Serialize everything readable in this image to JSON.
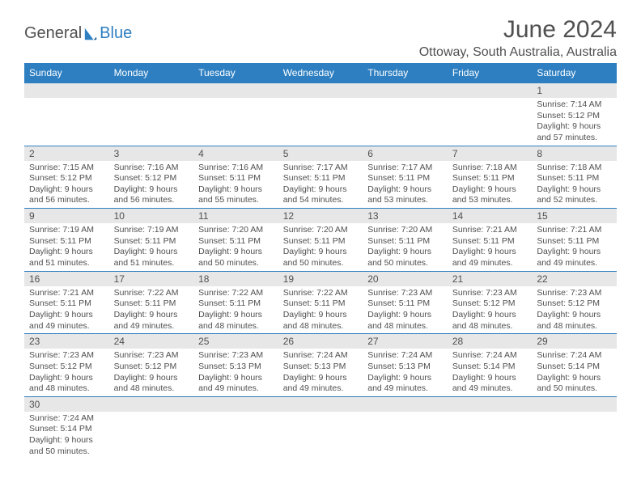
{
  "logo": {
    "text1": "General",
    "text2": "Blue"
  },
  "title": "June 2024",
  "location": "Ottoway, South Australia, Australia",
  "colors": {
    "header_bg": "#2d7fc1",
    "header_text": "#ffffff",
    "daynum_bg": "#e7e7e7",
    "text": "#505050",
    "border": "#2d7fc1"
  },
  "dayHeaders": [
    "Sunday",
    "Monday",
    "Tuesday",
    "Wednesday",
    "Thursday",
    "Friday",
    "Saturday"
  ],
  "weeks": [
    [
      null,
      null,
      null,
      null,
      null,
      null,
      {
        "n": "1",
        "sr": "7:14 AM",
        "ss": "5:12 PM",
        "dl": "9 hours and 57 minutes."
      }
    ],
    [
      {
        "n": "2",
        "sr": "7:15 AM",
        "ss": "5:12 PM",
        "dl": "9 hours and 56 minutes."
      },
      {
        "n": "3",
        "sr": "7:16 AM",
        "ss": "5:12 PM",
        "dl": "9 hours and 56 minutes."
      },
      {
        "n": "4",
        "sr": "7:16 AM",
        "ss": "5:11 PM",
        "dl": "9 hours and 55 minutes."
      },
      {
        "n": "5",
        "sr": "7:17 AM",
        "ss": "5:11 PM",
        "dl": "9 hours and 54 minutes."
      },
      {
        "n": "6",
        "sr": "7:17 AM",
        "ss": "5:11 PM",
        "dl": "9 hours and 53 minutes."
      },
      {
        "n": "7",
        "sr": "7:18 AM",
        "ss": "5:11 PM",
        "dl": "9 hours and 53 minutes."
      },
      {
        "n": "8",
        "sr": "7:18 AM",
        "ss": "5:11 PM",
        "dl": "9 hours and 52 minutes."
      }
    ],
    [
      {
        "n": "9",
        "sr": "7:19 AM",
        "ss": "5:11 PM",
        "dl": "9 hours and 51 minutes."
      },
      {
        "n": "10",
        "sr": "7:19 AM",
        "ss": "5:11 PM",
        "dl": "9 hours and 51 minutes."
      },
      {
        "n": "11",
        "sr": "7:20 AM",
        "ss": "5:11 PM",
        "dl": "9 hours and 50 minutes."
      },
      {
        "n": "12",
        "sr": "7:20 AM",
        "ss": "5:11 PM",
        "dl": "9 hours and 50 minutes."
      },
      {
        "n": "13",
        "sr": "7:20 AM",
        "ss": "5:11 PM",
        "dl": "9 hours and 50 minutes."
      },
      {
        "n": "14",
        "sr": "7:21 AM",
        "ss": "5:11 PM",
        "dl": "9 hours and 49 minutes."
      },
      {
        "n": "15",
        "sr": "7:21 AM",
        "ss": "5:11 PM",
        "dl": "9 hours and 49 minutes."
      }
    ],
    [
      {
        "n": "16",
        "sr": "7:21 AM",
        "ss": "5:11 PM",
        "dl": "9 hours and 49 minutes."
      },
      {
        "n": "17",
        "sr": "7:22 AM",
        "ss": "5:11 PM",
        "dl": "9 hours and 49 minutes."
      },
      {
        "n": "18",
        "sr": "7:22 AM",
        "ss": "5:11 PM",
        "dl": "9 hours and 48 minutes."
      },
      {
        "n": "19",
        "sr": "7:22 AM",
        "ss": "5:11 PM",
        "dl": "9 hours and 48 minutes."
      },
      {
        "n": "20",
        "sr": "7:23 AM",
        "ss": "5:11 PM",
        "dl": "9 hours and 48 minutes."
      },
      {
        "n": "21",
        "sr": "7:23 AM",
        "ss": "5:12 PM",
        "dl": "9 hours and 48 minutes."
      },
      {
        "n": "22",
        "sr": "7:23 AM",
        "ss": "5:12 PM",
        "dl": "9 hours and 48 minutes."
      }
    ],
    [
      {
        "n": "23",
        "sr": "7:23 AM",
        "ss": "5:12 PM",
        "dl": "9 hours and 48 minutes."
      },
      {
        "n": "24",
        "sr": "7:23 AM",
        "ss": "5:12 PM",
        "dl": "9 hours and 48 minutes."
      },
      {
        "n": "25",
        "sr": "7:23 AM",
        "ss": "5:13 PM",
        "dl": "9 hours and 49 minutes."
      },
      {
        "n": "26",
        "sr": "7:24 AM",
        "ss": "5:13 PM",
        "dl": "9 hours and 49 minutes."
      },
      {
        "n": "27",
        "sr": "7:24 AM",
        "ss": "5:13 PM",
        "dl": "9 hours and 49 minutes."
      },
      {
        "n": "28",
        "sr": "7:24 AM",
        "ss": "5:14 PM",
        "dl": "9 hours and 49 minutes."
      },
      {
        "n": "29",
        "sr": "7:24 AM",
        "ss": "5:14 PM",
        "dl": "9 hours and 50 minutes."
      }
    ],
    [
      {
        "n": "30",
        "sr": "7:24 AM",
        "ss": "5:14 PM",
        "dl": "9 hours and 50 minutes."
      },
      null,
      null,
      null,
      null,
      null,
      null
    ]
  ],
  "labels": {
    "sunrise": "Sunrise:",
    "sunset": "Sunset:",
    "daylight": "Daylight:"
  }
}
